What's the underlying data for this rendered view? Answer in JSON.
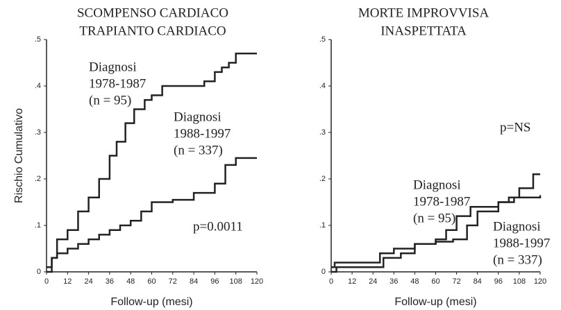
{
  "chart_data": [
    {
      "type": "line",
      "step": "post",
      "title": [
        "SCOMPENSO CARDIACO",
        "TRAPIANTO CARDIACO"
      ],
      "y_label": "Rischio Cumulativo",
      "x_label": "Follow-up (mesi)",
      "annotation": "p=0.0011",
      "xlim": [
        0,
        120
      ],
      "xticks": [
        0,
        12,
        24,
        36,
        48,
        60,
        72,
        84,
        96,
        108,
        120
      ],
      "ylim": [
        0,
        0.5
      ],
      "yticks": [
        0,
        {
          "value": 0.1,
          "label": ".1"
        },
        {
          "value": 0.2,
          "label": ".2"
        },
        {
          "value": 0.3,
          "label": ".3"
        },
        {
          "value": 0.4,
          "label": ".4"
        },
        {
          "value": 0.5,
          "label": ".5"
        }
      ],
      "series": [
        {
          "label": [
            "Diagnosi",
            "1978-1987",
            "(n = 95)"
          ],
          "color": "#222222",
          "x": [
            0,
            3,
            6,
            12,
            18,
            24,
            30,
            36,
            40,
            45,
            50,
            56,
            60,
            66,
            84,
            90,
            96,
            100,
            104,
            108,
            120
          ],
          "values": [
            0,
            0.03,
            0.07,
            0.09,
            0.13,
            0.16,
            0.2,
            0.25,
            0.28,
            0.32,
            0.35,
            0.37,
            0.38,
            0.4,
            0.4,
            0.41,
            0.43,
            0.44,
            0.45,
            0.47,
            0.47
          ]
        },
        {
          "label": [
            "Diagnosi",
            "1988-1997",
            "(n = 337)"
          ],
          "color": "#222222",
          "x": [
            0,
            3,
            6,
            12,
            18,
            24,
            30,
            36,
            42,
            48,
            54,
            60,
            72,
            84,
            96,
            102,
            108,
            120
          ],
          "values": [
            0.01,
            0.03,
            0.04,
            0.05,
            0.06,
            0.07,
            0.08,
            0.09,
            0.1,
            0.11,
            0.13,
            0.15,
            0.155,
            0.17,
            0.19,
            0.23,
            0.245,
            0.245
          ]
        }
      ]
    },
    {
      "type": "line",
      "step": "post",
      "title": [
        "MORTE IMPROVVISA",
        "INASPETTATA"
      ],
      "x_label": "Follow-up (mesi)",
      "annotation": "p=NS",
      "xlim": [
        0,
        120
      ],
      "xticks": [
        0,
        12,
        24,
        36,
        48,
        60,
        72,
        84,
        96,
        108,
        120
      ],
      "ylim": [
        0,
        0.5
      ],
      "yticks": [
        0,
        {
          "value": 0.1,
          "label": ".1"
        },
        {
          "value": 0.2,
          "label": ".2"
        },
        {
          "value": 0.3,
          "label": ".3"
        },
        {
          "value": 0.4,
          "label": ".4"
        },
        {
          "value": 0.5,
          "label": ".5"
        }
      ],
      "series": [
        {
          "label": [
            "Diagnosi",
            "1978-1987",
            "(n = 95)"
          ],
          "color": "#222222",
          "x": [
            0,
            2,
            24,
            28,
            36,
            48,
            60,
            66,
            72,
            80,
            96,
            102,
            108,
            116,
            120
          ],
          "values": [
            0.01,
            0.02,
            0.02,
            0.04,
            0.05,
            0.06,
            0.07,
            0.09,
            0.12,
            0.14,
            0.15,
            0.16,
            0.18,
            0.21,
            0.21
          ]
        },
        {
          "label": [
            "Diagnosi",
            "1988-1997",
            "(n = 337)"
          ],
          "color": "#222222",
          "x": [
            0,
            3,
            24,
            30,
            40,
            48,
            60,
            70,
            78,
            84,
            96,
            105,
            120
          ],
          "values": [
            0,
            0.01,
            0.01,
            0.03,
            0.04,
            0.06,
            0.065,
            0.07,
            0.1,
            0.13,
            0.15,
            0.16,
            0.165
          ]
        }
      ]
    }
  ]
}
